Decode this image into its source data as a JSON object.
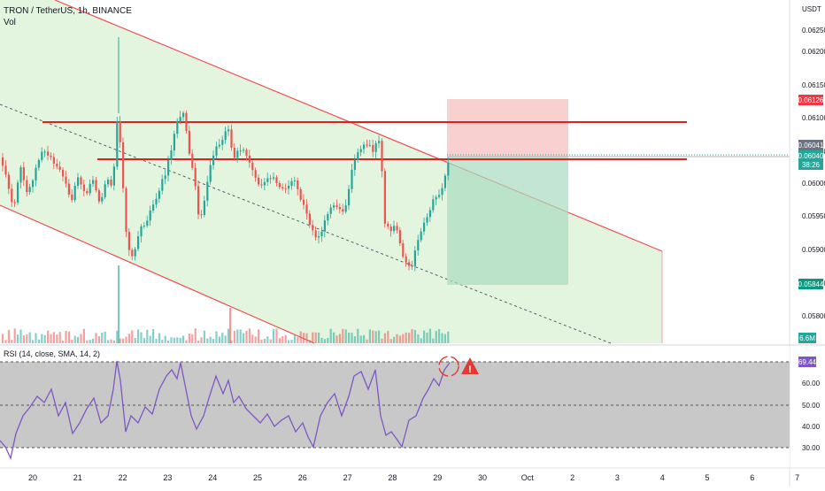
{
  "header": {
    "symbol_line": "TRON / TetherUS, 1h, BINANCE",
    "volume_label": "Vol"
  },
  "price_axis": {
    "currency": "USDT",
    "ticks": [
      "0.06250",
      "0.06200",
      "0.06150",
      "0.06100",
      "0.06050",
      "0.06000",
      "0.05950",
      "0.05900",
      "0.05850",
      "0.05800"
    ],
    "badges": {
      "target": "0.06126",
      "high": "0.06041",
      "last": "0.06040",
      "countdown": "38:26",
      "stop": "0.05844",
      "volume": "6.6M"
    }
  },
  "rsi": {
    "label": "RSI (14, close, SMA, 14, 2)",
    "ticks": [
      "60.00",
      "50.00",
      "40.00",
      "30.00"
    ],
    "value_badge": "69.44",
    "warning_glyph": "!"
  },
  "time_axis": {
    "ticks": [
      "20",
      "21",
      "22",
      "23",
      "24",
      "25",
      "26",
      "27",
      "28",
      "29",
      "30",
      "Oct",
      "2",
      "3",
      "4",
      "5",
      "6",
      "7"
    ]
  },
  "colors": {
    "up": "#26a69a",
    "down": "#ef5350",
    "channel_fill": "#d9f2d4",
    "channel_line": "#f05050",
    "horizontal_line": "#e02020",
    "rsi_line": "#7e57c2",
    "rsi_band": "#c8c8c8",
    "target_zone": "#f8c8c8",
    "stop_zone": "#a8dcc0",
    "warning": "#e53935"
  },
  "chart_data": {
    "type": "candlestick",
    "price_range": [
      0.0578,
      0.0626
    ],
    "resistance_levels": [
      0.06095,
      0.06034
    ],
    "position": {
      "entry": 0.06035,
      "target": 0.06126,
      "stop": 0.05844
    },
    "rsi_range": [
      26,
      72
    ],
    "rsi_levels": [
      70,
      50,
      30
    ],
    "rsi_last": 69.44
  }
}
